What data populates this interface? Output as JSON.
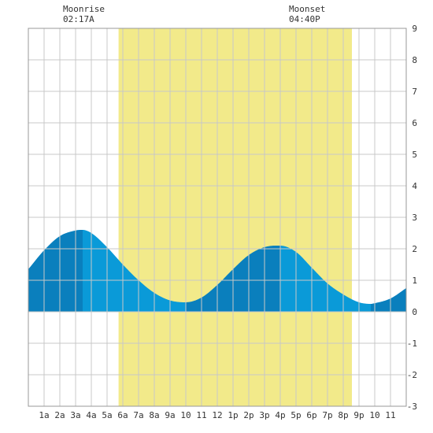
{
  "moon": {
    "rise_label": "Moonrise",
    "rise_time": "02:17A",
    "set_label": "Moonset",
    "set_time": "04:40P"
  },
  "chart_data": {
    "type": "area",
    "title": "",
    "xlabel": "",
    "ylabel": "",
    "x_ticks": [
      "1a",
      "2a",
      "3a",
      "4a",
      "5a",
      "6a",
      "7a",
      "8a",
      "9a",
      "10",
      "11",
      "12",
      "1p",
      "2p",
      "3p",
      "4p",
      "5p",
      "6p",
      "7p",
      "8p",
      "9p",
      "10",
      "11"
    ],
    "x_tick_hours": [
      1,
      2,
      3,
      4,
      5,
      6,
      7,
      8,
      9,
      10,
      11,
      12,
      13,
      14,
      15,
      16,
      17,
      18,
      19,
      20,
      21,
      22,
      23
    ],
    "xlim": [
      0,
      24
    ],
    "ylim": [
      -3,
      9
    ],
    "y_ticks": [
      -3,
      -2,
      -1,
      0,
      1,
      2,
      3,
      4,
      5,
      6,
      7,
      8,
      9
    ],
    "grid": true,
    "daylight": {
      "start_hour": 5.73,
      "end_hour": 20.55,
      "color": "#f2ea8a"
    },
    "fill_color_light": "#0a9ad8",
    "fill_color_dark": "#0a7fbd",
    "dark_bands_hours": [
      [
        0,
        3.45
      ],
      [
        10,
        16.0
      ],
      [
        21.75,
        24
      ]
    ],
    "tide_extremes": [
      {
        "hour": 3.45,
        "height": 2.6,
        "kind": "high"
      },
      {
        "hour": 10.0,
        "height": 0.3,
        "kind": "low"
      },
      {
        "hour": 16.0,
        "height": 2.1,
        "kind": "high"
      },
      {
        "hour": 21.75,
        "height": 0.25,
        "kind": "low"
      }
    ],
    "series": [
      {
        "x": [
          0,
          1,
          2,
          3,
          3.45,
          4,
          5,
          6,
          7,
          8,
          9,
          10,
          11,
          12,
          13,
          14,
          15,
          16,
          17,
          18,
          19,
          20,
          21,
          21.75,
          22,
          23,
          24
        ],
        "values": [
          1.35,
          1.95,
          2.4,
          2.58,
          2.6,
          2.5,
          2.05,
          1.5,
          1.0,
          0.6,
          0.36,
          0.3,
          0.45,
          0.85,
          1.35,
          1.8,
          2.05,
          2.1,
          1.9,
          1.4,
          0.9,
          0.55,
          0.3,
          0.25,
          0.27,
          0.42,
          0.75
        ]
      }
    ]
  }
}
